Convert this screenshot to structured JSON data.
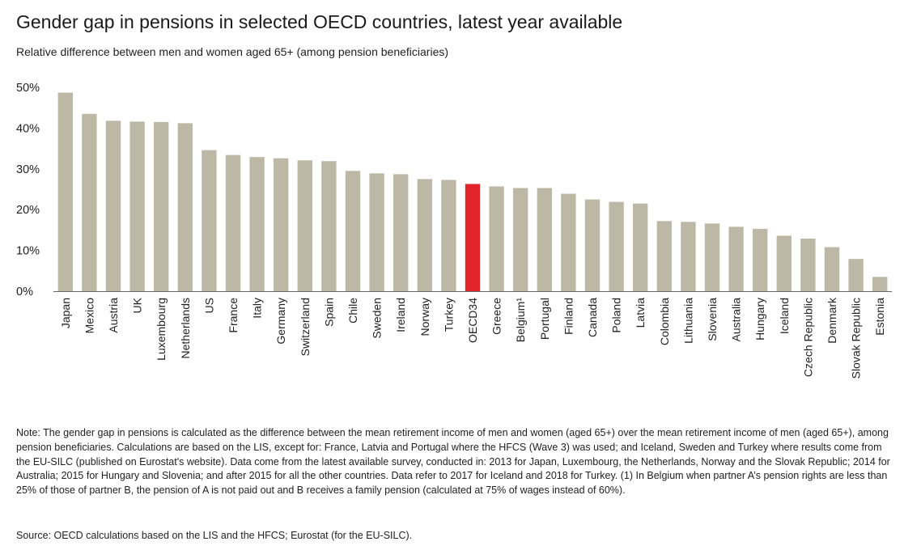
{
  "title": "Gender gap in pensions in selected OECD countries, latest year available",
  "subtitle": "Relative difference between men and women aged 65+ (among pension beneficiaries)",
  "note": "Note: The gender gap in pensions is calculated as the difference between the mean retirement income of men and women (aged 65+) over the mean retirement income of men (aged 65+), among pension beneficiaries. Calculations are based on the LIS, except for: France, Latvia and Portugal where the HFCS (Wave 3) was used; and Iceland, Sweden and Turkey where results come from the EU-SILC (published on Eurostat's website). Data come from the latest available survey, conducted in: 2013 for Japan, Luxembourg, the Netherlands, Norway and the Slovak Republic; 2014 for Australia; 2015 for Hungary and Slovenia; and after 2015 for all the other countries. Data refer to 2017 for Iceland and 2018 for Turkey. (1) In Belgium when partner A’s pension rights are less than 25% of those of partner B, the pension of A is not paid out and B receives a family pension (calculated at 75% of wages instead of 60%).",
  "source": "Source: OECD calculations based on the LIS and the HFCS; Eurostat (for the EU-SILC).",
  "colors": {
    "bar": "#bdb7a5",
    "highlight": "#e2242a",
    "axis": "#666666",
    "text": "#222222"
  },
  "chart_data": {
    "type": "bar",
    "title": "",
    "xlabel": "",
    "ylabel": "",
    "ylim": [
      0,
      50
    ],
    "yticks": [
      0,
      10,
      20,
      30,
      40,
      50
    ],
    "ytick_labels": [
      "0%",
      "10%",
      "20%",
      "30%",
      "40%",
      "50%"
    ],
    "grid": false,
    "legend": "none",
    "highlight_category": "OECD34",
    "categories": [
      "Japan",
      "Mexico",
      "Austria",
      "UK",
      "Luxembourg",
      "Netherlands",
      "US",
      "France",
      "Italy",
      "Germany",
      "Switzerland",
      "Spain",
      "Chile",
      "Sweden",
      "Ireland",
      "Norway",
      "Turkey",
      "OECD34",
      "Greece",
      "Belgium¹",
      "Portugal",
      "Finland",
      "Canada",
      "Poland",
      "Latvia",
      "Colombia",
      "Lithuania",
      "Slovenia",
      "Australia",
      "Hungary",
      "Iceland",
      "Czech Republic",
      "Denmark",
      "Slovak Republic",
      "Estonia"
    ],
    "values": [
      48.7,
      43.5,
      41.8,
      41.6,
      41.5,
      41.2,
      34.6,
      33.4,
      32.9,
      32.6,
      32.1,
      31.9,
      29.5,
      28.9,
      28.7,
      27.5,
      27.3,
      26.3,
      25.7,
      25.3,
      25.3,
      23.9,
      22.5,
      21.9,
      21.5,
      17.2,
      17.0,
      16.6,
      15.8,
      15.3,
      13.6,
      12.9,
      10.8,
      7.9,
      3.5
    ]
  }
}
